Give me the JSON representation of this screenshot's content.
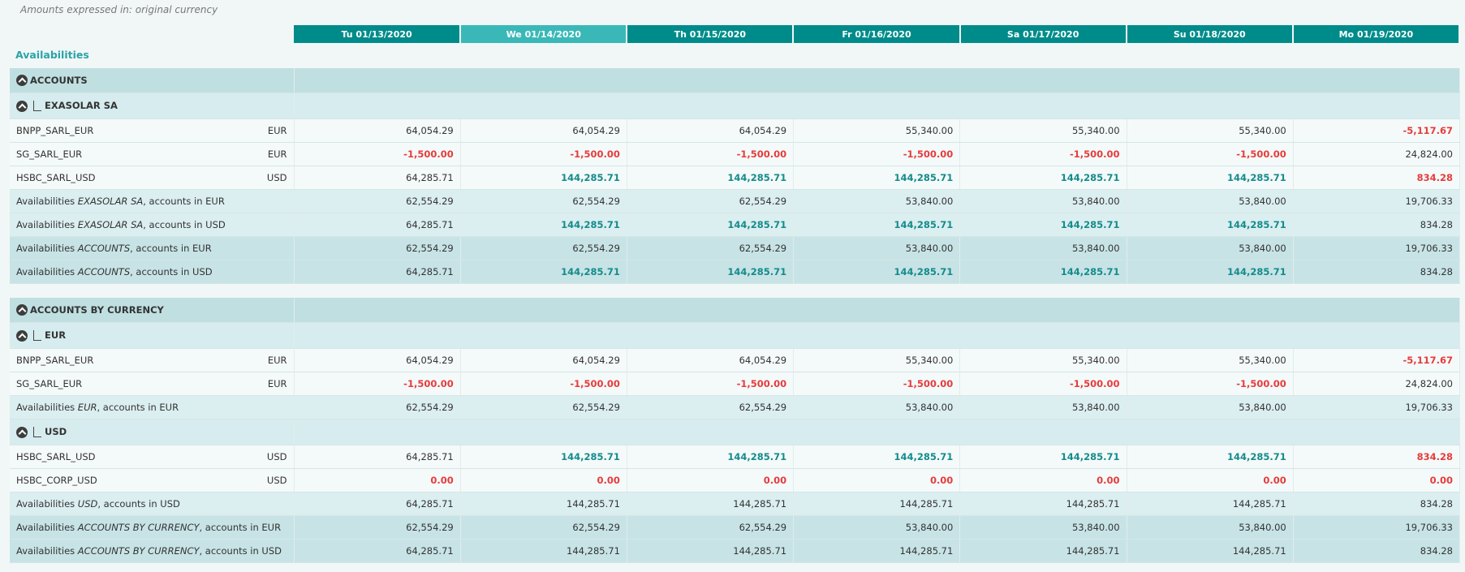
{
  "note": "Amounts expressed in: original currency",
  "title": "Availabilities",
  "dates": [
    "Tu 01/13/2020",
    "We 01/14/2020",
    "Th 01/15/2020",
    "Fr 01/16/2020",
    "Sa 01/17/2020",
    "Su 01/18/2020",
    "Mo 01/19/2020"
  ],
  "selected_date_index": 1,
  "blocks": [
    {
      "rows": [
        {
          "type": "section",
          "label": "ACCOUNTS"
        },
        {
          "type": "group",
          "label": "EXASOLAR SA"
        },
        {
          "type": "acct",
          "label": "BNPP_SARL_EUR",
          "cur": "EUR",
          "values": [
            {
              "v": "64,054.29",
              "s": "plain"
            },
            {
              "v": "64,054.29",
              "s": "plain"
            },
            {
              "v": "64,054.29",
              "s": "plain"
            },
            {
              "v": "55,340.00",
              "s": "plain"
            },
            {
              "v": "55,340.00",
              "s": "plain"
            },
            {
              "v": "55,340.00",
              "s": "plain"
            },
            {
              "v": "-5,117.67",
              "s": "neg"
            }
          ]
        },
        {
          "type": "acct",
          "label": "SG_SARL_EUR",
          "cur": "EUR",
          "values": [
            {
              "v": "-1,500.00",
              "s": "neg"
            },
            {
              "v": "-1,500.00",
              "s": "neg"
            },
            {
              "v": "-1,500.00",
              "s": "neg"
            },
            {
              "v": "-1,500.00",
              "s": "neg"
            },
            {
              "v": "-1,500.00",
              "s": "neg"
            },
            {
              "v": "-1,500.00",
              "s": "neg"
            },
            {
              "v": "24,824.00",
              "s": "plain"
            }
          ]
        },
        {
          "type": "acct",
          "label": "HSBC_SARL_USD",
          "cur": "USD",
          "values": [
            {
              "v": "64,285.71",
              "s": "plain"
            },
            {
              "v": "144,285.71",
              "s": "pos"
            },
            {
              "v": "144,285.71",
              "s": "pos"
            },
            {
              "v": "144,285.71",
              "s": "pos"
            },
            {
              "v": "144,285.71",
              "s": "pos"
            },
            {
              "v": "144,285.71",
              "s": "pos"
            },
            {
              "v": "834.28",
              "s": "neg"
            }
          ]
        },
        {
          "type": "sub",
          "pre": "Availabilities ",
          "em": "EXASOLAR SA",
          "post": ", accounts in EUR",
          "values": [
            {
              "v": "62,554.29",
              "s": "plain"
            },
            {
              "v": "62,554.29",
              "s": "plain"
            },
            {
              "v": "62,554.29",
              "s": "plain"
            },
            {
              "v": "53,840.00",
              "s": "plain"
            },
            {
              "v": "53,840.00",
              "s": "plain"
            },
            {
              "v": "53,840.00",
              "s": "plain"
            },
            {
              "v": "19,706.33",
              "s": "plain"
            }
          ]
        },
        {
          "type": "sub",
          "pre": "Availabilities ",
          "em": "EXASOLAR SA",
          "post": ", accounts in USD",
          "values": [
            {
              "v": "64,285.71",
              "s": "plain"
            },
            {
              "v": "144,285.71",
              "s": "pos"
            },
            {
              "v": "144,285.71",
              "s": "pos"
            },
            {
              "v": "144,285.71",
              "s": "pos"
            },
            {
              "v": "144,285.71",
              "s": "pos"
            },
            {
              "v": "144,285.71",
              "s": "pos"
            },
            {
              "v": "834.28",
              "s": "plain"
            }
          ]
        },
        {
          "type": "tot",
          "pre": "Availabilities ",
          "em": "ACCOUNTS",
          "post": ", accounts in EUR",
          "values": [
            {
              "v": "62,554.29",
              "s": "plain"
            },
            {
              "v": "62,554.29",
              "s": "plain"
            },
            {
              "v": "62,554.29",
              "s": "plain"
            },
            {
              "v": "53,840.00",
              "s": "plain"
            },
            {
              "v": "53,840.00",
              "s": "plain"
            },
            {
              "v": "53,840.00",
              "s": "plain"
            },
            {
              "v": "19,706.33",
              "s": "plain"
            }
          ]
        },
        {
          "type": "tot",
          "pre": "Availabilities ",
          "em": "ACCOUNTS",
          "post": ", accounts in USD",
          "values": [
            {
              "v": "64,285.71",
              "s": "plain"
            },
            {
              "v": "144,285.71",
              "s": "pos"
            },
            {
              "v": "144,285.71",
              "s": "pos"
            },
            {
              "v": "144,285.71",
              "s": "pos"
            },
            {
              "v": "144,285.71",
              "s": "pos"
            },
            {
              "v": "144,285.71",
              "s": "pos"
            },
            {
              "v": "834.28",
              "s": "plain"
            }
          ]
        }
      ]
    },
    {
      "rows": [
        {
          "type": "section",
          "label": "ACCOUNTS BY CURRENCY"
        },
        {
          "type": "group",
          "label": "EUR"
        },
        {
          "type": "acct",
          "label": "BNPP_SARL_EUR",
          "cur": "EUR",
          "values": [
            {
              "v": "64,054.29",
              "s": "plain"
            },
            {
              "v": "64,054.29",
              "s": "plain"
            },
            {
              "v": "64,054.29",
              "s": "plain"
            },
            {
              "v": "55,340.00",
              "s": "plain"
            },
            {
              "v": "55,340.00",
              "s": "plain"
            },
            {
              "v": "55,340.00",
              "s": "plain"
            },
            {
              "v": "-5,117.67",
              "s": "neg"
            }
          ]
        },
        {
          "type": "acct",
          "label": "SG_SARL_EUR",
          "cur": "EUR",
          "values": [
            {
              "v": "-1,500.00",
              "s": "neg"
            },
            {
              "v": "-1,500.00",
              "s": "neg"
            },
            {
              "v": "-1,500.00",
              "s": "neg"
            },
            {
              "v": "-1,500.00",
              "s": "neg"
            },
            {
              "v": "-1,500.00",
              "s": "neg"
            },
            {
              "v": "-1,500.00",
              "s": "neg"
            },
            {
              "v": "24,824.00",
              "s": "plain"
            }
          ]
        },
        {
          "type": "sub",
          "pre": "Availabilities ",
          "em": "EUR",
          "post": ", accounts in EUR",
          "values": [
            {
              "v": "62,554.29",
              "s": "plain"
            },
            {
              "v": "62,554.29",
              "s": "plain"
            },
            {
              "v": "62,554.29",
              "s": "plain"
            },
            {
              "v": "53,840.00",
              "s": "plain"
            },
            {
              "v": "53,840.00",
              "s": "plain"
            },
            {
              "v": "53,840.00",
              "s": "plain"
            },
            {
              "v": "19,706.33",
              "s": "plain"
            }
          ]
        },
        {
          "type": "group",
          "label": "USD"
        },
        {
          "type": "acct",
          "label": "HSBC_SARL_USD",
          "cur": "USD",
          "values": [
            {
              "v": "64,285.71",
              "s": "plain"
            },
            {
              "v": "144,285.71",
              "s": "pos"
            },
            {
              "v": "144,285.71",
              "s": "pos"
            },
            {
              "v": "144,285.71",
              "s": "pos"
            },
            {
              "v": "144,285.71",
              "s": "pos"
            },
            {
              "v": "144,285.71",
              "s": "pos"
            },
            {
              "v": "834.28",
              "s": "neg"
            }
          ]
        },
        {
          "type": "acct",
          "label": "HSBC_CORP_USD",
          "cur": "USD",
          "values": [
            {
              "v": "0.00",
              "s": "neg"
            },
            {
              "v": "0.00",
              "s": "neg"
            },
            {
              "v": "0.00",
              "s": "neg"
            },
            {
              "v": "0.00",
              "s": "neg"
            },
            {
              "v": "0.00",
              "s": "neg"
            },
            {
              "v": "0.00",
              "s": "neg"
            },
            {
              "v": "0.00",
              "s": "neg"
            }
          ]
        },
        {
          "type": "sub",
          "pre": "Availabilities ",
          "em": "USD",
          "post": ", accounts in USD",
          "values": [
            {
              "v": "64,285.71",
              "s": "plain"
            },
            {
              "v": "144,285.71",
              "s": "plain"
            },
            {
              "v": "144,285.71",
              "s": "plain"
            },
            {
              "v": "144,285.71",
              "s": "plain"
            },
            {
              "v": "144,285.71",
              "s": "plain"
            },
            {
              "v": "144,285.71",
              "s": "plain"
            },
            {
              "v": "834.28",
              "s": "plain"
            }
          ]
        },
        {
          "type": "tot",
          "pre": "Availabilities ",
          "em": "ACCOUNTS BY CURRENCY",
          "post": ", accounts in EUR",
          "values": [
            {
              "v": "62,554.29",
              "s": "plain"
            },
            {
              "v": "62,554.29",
              "s": "plain"
            },
            {
              "v": "62,554.29",
              "s": "plain"
            },
            {
              "v": "53,840.00",
              "s": "plain"
            },
            {
              "v": "53,840.00",
              "s": "plain"
            },
            {
              "v": "53,840.00",
              "s": "plain"
            },
            {
              "v": "19,706.33",
              "s": "plain"
            }
          ]
        },
        {
          "type": "tot",
          "pre": "Availabilities ",
          "em": "ACCOUNTS BY CURRENCY",
          "post": ", accounts in USD",
          "values": [
            {
              "v": "64,285.71",
              "s": "plain"
            },
            {
              "v": "144,285.71",
              "s": "plain"
            },
            {
              "v": "144,285.71",
              "s": "plain"
            },
            {
              "v": "144,285.71",
              "s": "plain"
            },
            {
              "v": "144,285.71",
              "s": "plain"
            },
            {
              "v": "144,285.71",
              "s": "plain"
            },
            {
              "v": "834.28",
              "s": "plain"
            }
          ]
        }
      ]
    }
  ]
}
